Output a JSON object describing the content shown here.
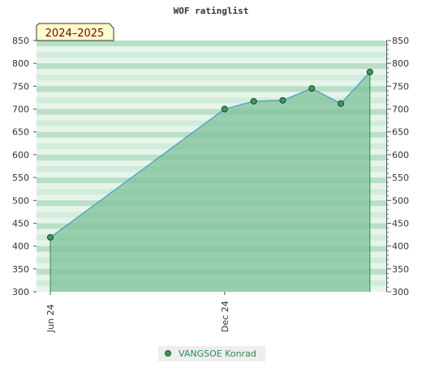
{
  "chart_data": {
    "type": "area",
    "title": "WOF ratinglist",
    "badge": "2024–2025",
    "ylim": [
      300,
      850
    ],
    "y_ticks": [
      300,
      350,
      400,
      450,
      500,
      550,
      600,
      650,
      700,
      750,
      800,
      850
    ],
    "right_axis": true,
    "x_tick_labels": [
      "Jun 24",
      "Dec 24"
    ],
    "series": [
      {
        "name": "VANGSOE Konrad",
        "points": [
          {
            "x": "2024-06",
            "y": 419
          },
          {
            "x": "2024-12",
            "y": 700
          },
          {
            "x": "2025-01",
            "y": 717
          },
          {
            "x": "2025-02",
            "y": 719
          },
          {
            "x": "2025-03",
            "y": 745
          },
          {
            "x": "2025-04",
            "y": 712
          },
          {
            "x": "2025-05",
            "y": 781
          }
        ]
      }
    ],
    "colors": {
      "line": "#4a9fc8",
      "fill": "#7ec29a",
      "marker": "#3a9a5c",
      "band_dark": "#b9dfc6",
      "band_light": "#e6f4ea",
      "badge_bg": "#ffffcc",
      "badge_text": "#7a0000",
      "legend_text": "#2e8b57"
    },
    "legend": {
      "position": "bottom",
      "label": "VANGSOE Konrad"
    }
  }
}
